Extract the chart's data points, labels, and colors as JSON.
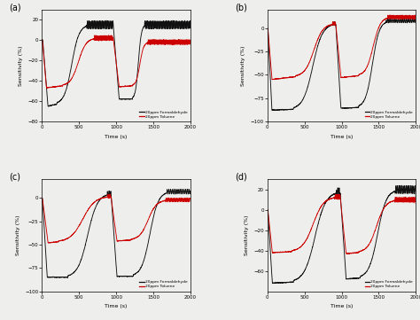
{
  "title_a": "(a)",
  "title_b": "(b)",
  "title_c": "(c)",
  "title_d": "(d)",
  "xlabel": "Time (s)",
  "ylabel": "Sensitivity (%)",
  "legend_black": "20ppm Formaldehyde",
  "legend_red": "20ppm Toluene",
  "color_black": "#111111",
  "color_red": "#cc0000",
  "xlim": [
    0,
    2000
  ],
  "background": "#eeeeec",
  "panels": [
    {
      "label": "(a)",
      "ylim": [
        -80,
        30
      ],
      "yticks": [
        -80,
        -60,
        -40,
        -20,
        0,
        20
      ],
      "black": {
        "drop1_start": 10,
        "drop1_end": 80,
        "drop1_min": -65,
        "trough1_end": 200,
        "trough1_val": -63,
        "rise1_end": 600,
        "rise1_peak": 15,
        "plateau1_end": 960,
        "drop2_start": 960,
        "drop2_end": 1040,
        "drop2_min": -58,
        "trough2_end": 1220,
        "trough2_val": -58,
        "rise2_end": 1380,
        "rise2_peak": 15,
        "plateau2_end": 2000,
        "end_val": 18,
        "osc_amp": 4,
        "osc_freq": 0.35
      },
      "red": {
        "drop1_start": 5,
        "drop1_end": 60,
        "drop1_min": -47,
        "trough1_end": 280,
        "trough1_val": -45,
        "rise1_end": 700,
        "rise1_peak": 2,
        "plateau1_end": 960,
        "drop2_start": 960,
        "drop2_end": 1040,
        "drop2_min": -46,
        "trough2_end": 1220,
        "trough2_val": -45,
        "rise2_end": 1420,
        "rise2_peak": -2,
        "plateau2_end": 2000,
        "end_val": -2,
        "osc_amp": 2.5,
        "osc_freq": 0.4
      }
    },
    {
      "label": "(b)",
      "ylim": [
        -100,
        20
      ],
      "yticks": [
        -100,
        -75,
        -50,
        -25,
        0
      ],
      "black": {
        "drop1_start": 5,
        "drop1_end": 60,
        "drop1_min": -88,
        "trough1_end": 350,
        "trough1_val": -87,
        "rise1_end": 870,
        "rise1_peak": 5,
        "plateau1_end": 920,
        "drop2_start": 920,
        "drop2_end": 990,
        "drop2_min": -86,
        "trough2_end": 1230,
        "trough2_val": -85,
        "rise2_end": 1600,
        "rise2_peak": 8,
        "plateau2_end": 2000,
        "end_val": 8,
        "osc_amp": 2,
        "osc_freq": 0.3
      },
      "red": {
        "drop1_start": 5,
        "drop1_end": 60,
        "drop1_min": -55,
        "trough1_end": 380,
        "trough1_val": -52,
        "rise1_end": 870,
        "rise1_peak": 5,
        "plateau1_end": 920,
        "drop2_start": 920,
        "drop2_end": 990,
        "drop2_min": -53,
        "trough2_end": 1230,
        "trough2_val": -51,
        "rise2_end": 1620,
        "rise2_peak": 12,
        "plateau2_end": 2000,
        "end_val": 13,
        "osc_amp": 2,
        "osc_freq": 0.38
      }
    },
    {
      "label": "(c)",
      "ylim": [
        -100,
        20
      ],
      "yticks": [
        -100,
        -75,
        -50,
        -25,
        0
      ],
      "black": {
        "drop1_start": 5,
        "drop1_end": 70,
        "drop1_min": -85,
        "trough1_end": 350,
        "trough1_val": -85,
        "rise1_end": 880,
        "rise1_peak": 5,
        "plateau1_end": 930,
        "drop2_start": 930,
        "drop2_end": 1010,
        "drop2_min": -84,
        "trough2_end": 1230,
        "trough2_val": -84,
        "rise2_end": 1680,
        "rise2_peak": 7,
        "plateau2_end": 2000,
        "end_val": 8,
        "osc_amp": 2.5,
        "osc_freq": 0.28
      },
      "red": {
        "drop1_start": 5,
        "drop1_end": 80,
        "drop1_min": -48,
        "trough1_end": 220,
        "trough1_val": -47,
        "rise1_end": 880,
        "rise1_peak": 2,
        "plateau1_end": 930,
        "drop2_start": 930,
        "drop2_end": 1010,
        "drop2_min": -46,
        "trough2_end": 1200,
        "trough2_val": -45,
        "rise2_end": 1660,
        "rise2_peak": -2,
        "plateau2_end": 2000,
        "end_val": -3,
        "osc_amp": 2,
        "osc_freq": 0.35
      }
    },
    {
      "label": "(d)",
      "ylim": [
        -80,
        30
      ],
      "yticks": [
        -60,
        -40,
        -20,
        0,
        20
      ],
      "black": {
        "drop1_start": 5,
        "drop1_end": 65,
        "drop1_min": -72,
        "trough1_end": 350,
        "trough1_val": -71,
        "rise1_end": 930,
        "rise1_peak": 18,
        "plateau1_end": 980,
        "drop2_start": 980,
        "drop2_end": 1060,
        "drop2_min": -68,
        "trough2_end": 1250,
        "trough2_val": -67,
        "rise2_end": 1720,
        "rise2_peak": 20,
        "plateau2_end": 2000,
        "end_val": 22,
        "osc_amp": 4,
        "osc_freq": 0.32
      },
      "red": {
        "drop1_start": 5,
        "drop1_end": 65,
        "drop1_min": -42,
        "trough1_end": 330,
        "trough1_val": -41,
        "rise1_end": 900,
        "rise1_peak": 13,
        "plateau1_end": 980,
        "drop2_start": 980,
        "drop2_end": 1060,
        "drop2_min": -43,
        "trough2_end": 1230,
        "trough2_val": -42,
        "rise2_end": 1710,
        "rise2_peak": 10,
        "plateau2_end": 2000,
        "end_val": 12,
        "osc_amp": 2.5,
        "osc_freq": 0.38
      }
    }
  ]
}
